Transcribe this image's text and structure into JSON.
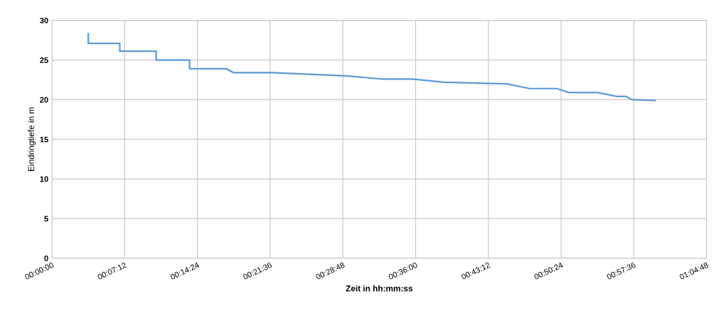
{
  "chart_data": {
    "type": "line",
    "xlabel": "Zeit in hh:mm:ss",
    "ylabel": "Eindringtiefe in m",
    "x": [
      0.06,
      0.06,
      0.112,
      0.112,
      0.172,
      0.172,
      0.227,
      0.227,
      0.287,
      0.3,
      0.363,
      0.485,
      0.545,
      0.595,
      0.647,
      0.75,
      0.788,
      0.833,
      0.853,
      0.9,
      0.932,
      0.947,
      0.957,
      0.995
    ],
    "series": [
      {
        "color": "#5b9bd5",
        "values": [
          28.3,
          27.1,
          27.1,
          26.1,
          26.1,
          25.0,
          25.0,
          23.9,
          23.9,
          23.4,
          23.4,
          23.0,
          22.6,
          22.6,
          22.2,
          22.0,
          21.4,
          21.4,
          20.9,
          20.9,
          20.4,
          20.4,
          20.0,
          19.9
        ]
      }
    ],
    "xlim": [
      0,
      1.08
    ],
    "xticks": [
      {
        "value": 0,
        "label": "00:00:00"
      },
      {
        "value": 0.12,
        "label": "00:07:12"
      },
      {
        "value": 0.24,
        "label": "00:14:24"
      },
      {
        "value": 0.36,
        "label": "00:21:36"
      },
      {
        "value": 0.48,
        "label": "00:28:48"
      },
      {
        "value": 0.6,
        "label": "00:36:00"
      },
      {
        "value": 0.72,
        "label": "00:43:12"
      },
      {
        "value": 0.84,
        "label": "00:50:24"
      },
      {
        "value": 0.96,
        "label": "00:57:36"
      },
      {
        "value": 1.08,
        "label": "01:04:48"
      }
    ],
    "ylim": [
      0,
      30
    ],
    "yticks": [
      0,
      5,
      10,
      15,
      20,
      25,
      30
    ],
    "grid": true,
    "legend": false,
    "marker": "none",
    "line_style": "solid"
  }
}
